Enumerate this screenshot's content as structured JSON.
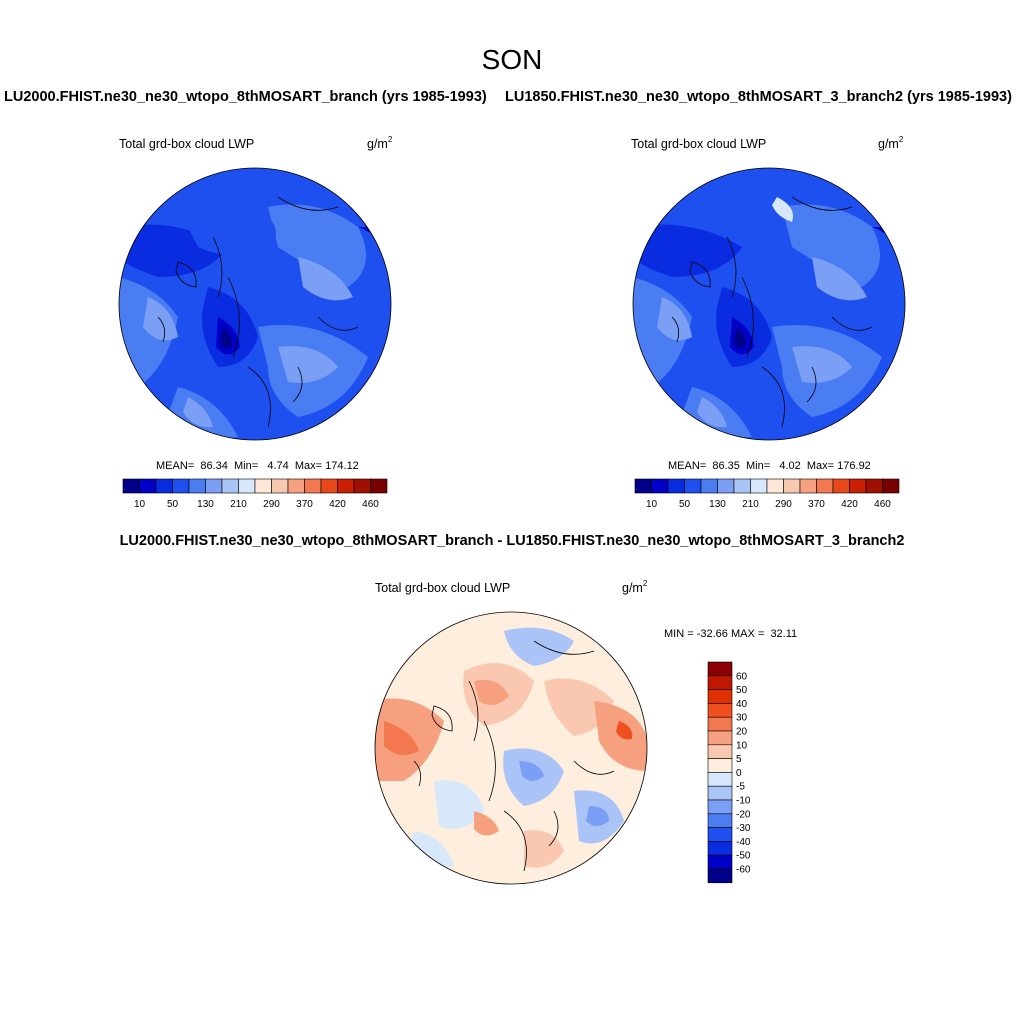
{
  "figure": {
    "season": "SON",
    "case1_title": "LU2000.FHIST.ne30_ne30_wtopo_8thMOSART_branch (yrs 1985-1993)",
    "case2_title": "LU1850.FHIST.ne30_ne30_wtopo_8thMOSART_3_branch2 (yrs 1985-1993)",
    "diff_title": "LU2000.FHIST.ne30_ne30_wtopo_8thMOSART_branch - LU1850.FHIST.ne30_ne30_wtopo_8thMOSART_3_branch2"
  },
  "panels": [
    {
      "variable": "Total grd-box cloud LWP",
      "units_base": "g/m",
      "units_exp": "2",
      "stats": {
        "mean_label": "MEAN=",
        "mean": "86.34",
        "min_label": "Min=",
        "min": "4.74",
        "max_label": "Max=",
        "max": "174.12"
      }
    },
    {
      "variable": "Total grd-box cloud LWP",
      "units_base": "g/m",
      "units_exp": "2",
      "stats": {
        "mean_label": "MEAN=",
        "mean": "86.35",
        "min_label": "Min=",
        "min": "4.02",
        "max_label": "Max=",
        "max": "176.92"
      }
    },
    {
      "variable": "Total grd-box cloud LWP",
      "units_base": "g/m",
      "units_exp": "2",
      "stats": {
        "min_label": "MIN =",
        "min": "-32.66",
        "max_label": "MAX =",
        "max": "32.11"
      }
    }
  ],
  "abs_colorbar": {
    "colors": [
      "#00008b",
      "#0000c8",
      "#0a2ce0",
      "#1e50f0",
      "#4a7cf2",
      "#7a9ff4",
      "#aac4f8",
      "#d8e8fb",
      "#fde8d8",
      "#f9c8b0",
      "#f6a080",
      "#f27850",
      "#e84818",
      "#c82000",
      "#a01000",
      "#780000"
    ],
    "labels": [
      "10",
      "50",
      "130",
      "210",
      "290",
      "370",
      "420",
      "460"
    ]
  },
  "diff_colorbar": {
    "colors": [
      "#8b0000",
      "#c01800",
      "#e03000",
      "#f05020",
      "#f37850",
      "#f6a080",
      "#fac8b0",
      "#fdeede",
      "#d8e8fb",
      "#aac4f8",
      "#7a9ff4",
      "#4a7cf2",
      "#1e50f0",
      "#0a2ce0",
      "#0000c8",
      "#00008b"
    ],
    "labels": [
      "60",
      "50",
      "40",
      "30",
      "20",
      "10",
      "5",
      "0",
      "-5",
      "-10",
      "-20",
      "-30",
      "-40",
      "-50",
      "-60"
    ]
  }
}
